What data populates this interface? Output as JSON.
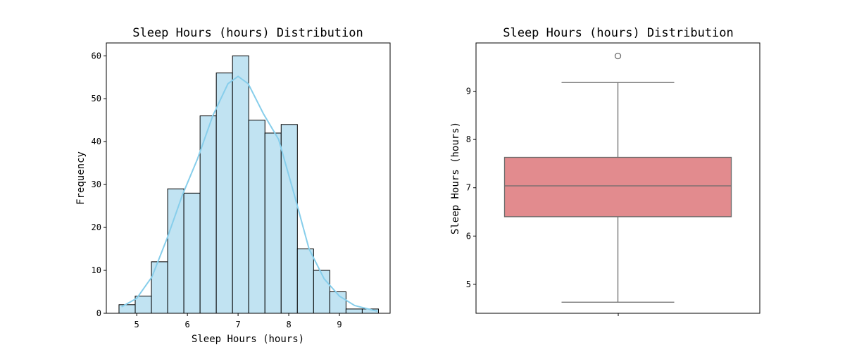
{
  "chart_data": [
    {
      "type": "bar",
      "subtype": "histogram-with-kde",
      "title": "Sleep Hours (hours) Distribution",
      "xlabel": "Sleep Hours (hours)",
      "ylabel": "Frequency",
      "xlim": [
        4.4,
        10.0
      ],
      "ylim": [
        0,
        63
      ],
      "xticks": [
        5,
        6,
        7,
        8,
        9
      ],
      "yticks": [
        0,
        10,
        20,
        30,
        40,
        50,
        60
      ],
      "bin_edges": [
        4.65,
        4.97,
        5.29,
        5.61,
        5.93,
        6.25,
        6.57,
        6.89,
        7.21,
        7.53,
        7.85,
        8.17,
        8.49,
        8.81,
        9.13,
        9.45,
        9.77
      ],
      "values": [
        2,
        4,
        12,
        29,
        28,
        46,
        56,
        60,
        45,
        42,
        44,
        15,
        10,
        5,
        1,
        1
      ],
      "bar_color": "#c1e3f2",
      "edge_color": "#000000",
      "kde": {
        "color": "#87ceeb",
        "x": [
          4.7,
          5.0,
          5.3,
          5.6,
          5.9,
          6.2,
          6.5,
          6.8,
          7.0,
          7.2,
          7.5,
          7.8,
          8.1,
          8.4,
          8.7,
          9.0,
          9.3,
          9.6,
          9.75
        ],
        "y": [
          1.5,
          3.5,
          8.5,
          17.5,
          27.5,
          36.0,
          46.0,
          53.5,
          55.2,
          53.5,
          46.5,
          40.5,
          28.0,
          15.0,
          8.0,
          4.0,
          1.8,
          0.9,
          0.5
        ]
      },
      "grid": false
    },
    {
      "type": "box",
      "title": "Sleep Hours (hours) Distribution",
      "xlabel": "",
      "ylabel": "Sleep Hours (hours)",
      "ylim": [
        4.4,
        10.0
      ],
      "yticks": [
        5,
        6,
        7,
        8,
        9
      ],
      "stats": {
        "min": 4.63,
        "q1": 6.4,
        "median": 7.04,
        "q3": 7.63,
        "max": 9.18
      },
      "outliers": [
        9.73
      ],
      "box_color": "#e28b8e",
      "line_color": "#6b6b6b",
      "grid": false
    }
  ]
}
